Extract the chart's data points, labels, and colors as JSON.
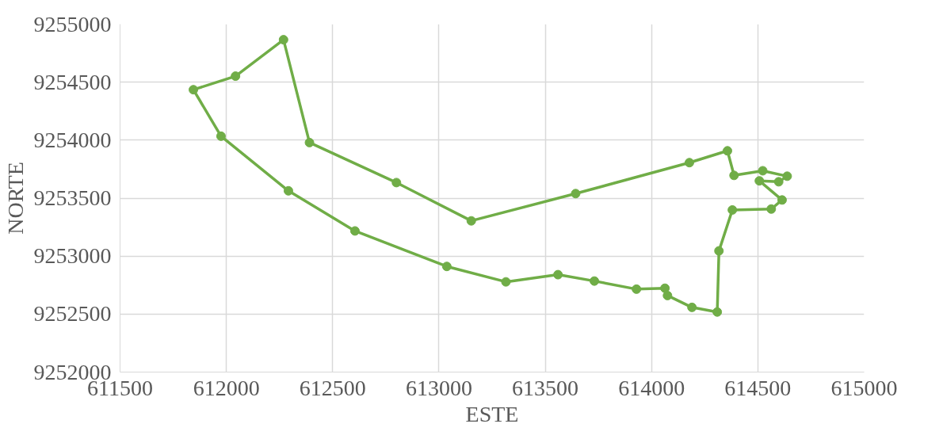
{
  "chart_data": {
    "type": "line",
    "xlabel": "ESTE",
    "ylabel": "NORTE",
    "x": [
      611845,
      612043,
      612269,
      612391,
      612800,
      613152,
      613643,
      614178,
      614357,
      614388,
      614523,
      614638,
      614598,
      614507,
      614614,
      614563,
      614380,
      614317,
      614309,
      614190,
      614075,
      614063,
      613929,
      613731,
      613560,
      613315,
      613037,
      612605,
      612292,
      611975
    ],
    "series": [
      {
        "color": "#70ad47",
        "values": [
          9254435,
          9254552,
          9254866,
          9253979,
          9253634,
          9253304,
          9253539,
          9253806,
          9253908,
          9253696,
          9253736,
          9253689,
          9253641,
          9253649,
          9253484,
          9253406,
          9253398,
          9253045,
          9252518,
          9252558,
          9252660,
          9252723,
          9252715,
          9252785,
          9252840,
          9252778,
          9252911,
          9253217,
          9253563,
          9254034
        ]
      },
      {
        "type": "line",
        "color": "#70ad47",
        "marker": "none",
        "x": [
          611975,
          611845
        ],
        "values": [
          9254034,
          9254435
        ]
      }
    ],
    "xlim": [
      611500,
      615000
    ],
    "xticks": [
      611500,
      612000,
      612500,
      613000,
      613500,
      614000,
      614500,
      615000
    ],
    "ylim": [
      9252000,
      9255000
    ],
    "yticks": [
      9252000,
      9252500,
      9253000,
      9253500,
      9254000,
      9254500,
      9255000
    ],
    "grid": true,
    "marker": "circle",
    "line_style": "solid"
  }
}
